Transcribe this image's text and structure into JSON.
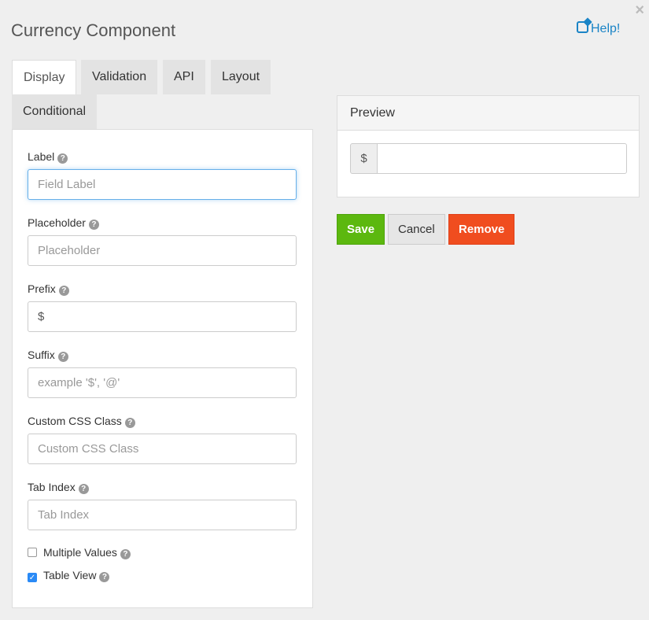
{
  "header": {
    "title": "Currency Component",
    "help": "Help!",
    "close": "×"
  },
  "tabs": [
    {
      "label": "Display"
    },
    {
      "label": "Validation"
    },
    {
      "label": "API"
    },
    {
      "label": "Layout"
    },
    {
      "label": "Conditional"
    }
  ],
  "fields": [
    {
      "label": "Label",
      "placeholder": "Field Label",
      "value": ""
    },
    {
      "label": "Placeholder",
      "placeholder": "Placeholder",
      "value": ""
    },
    {
      "label": "Prefix",
      "placeholder": "",
      "value": "$"
    },
    {
      "label": "Suffix",
      "placeholder": "example '$', '@'",
      "value": ""
    },
    {
      "label": "Custom CSS Class",
      "placeholder": "Custom CSS Class",
      "value": ""
    },
    {
      "label": "Tab Index",
      "placeholder": "Tab Index",
      "value": ""
    }
  ],
  "checkboxes": [
    {
      "label": "Multiple Values",
      "checked": false
    },
    {
      "label": "Table View",
      "checked": true
    }
  ],
  "preview": {
    "title": "Preview",
    "prefix": "$"
  },
  "buttons": {
    "save": "Save",
    "cancel": "Cancel",
    "remove": "Remove"
  },
  "colors": {
    "save": "#5cb80f",
    "remove": "#f04d1f",
    "link": "#1a84c6"
  }
}
